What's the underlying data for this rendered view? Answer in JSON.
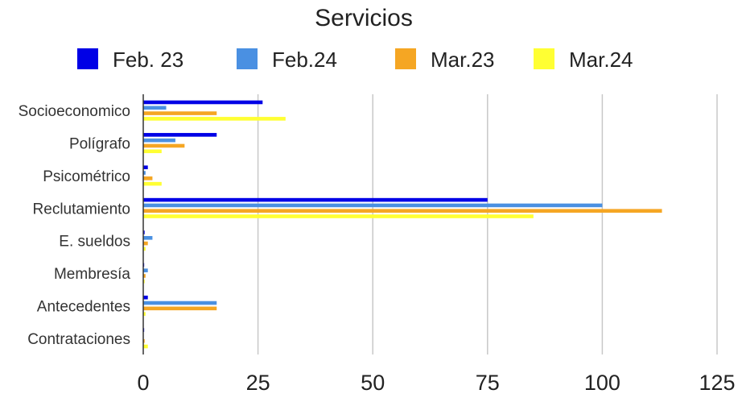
{
  "chart_data": {
    "type": "bar",
    "orientation": "horizontal",
    "title": "Servicios",
    "xlabel": "",
    "ylabel": "",
    "xlim": [
      0,
      125
    ],
    "x_ticks": [
      0,
      25,
      50,
      75,
      100,
      125
    ],
    "grid": true,
    "legend_position": "top",
    "categories": [
      "Socioeconomico",
      "Polígrafo",
      "Psicométrico",
      "Reclutamiento",
      "E. sueldos",
      "Membresía",
      "Antecedentes",
      "Contrataciones"
    ],
    "series": [
      {
        "name": "Feb. 23",
        "color": "#0000e6",
        "values": [
          26,
          16,
          1,
          75,
          0.3,
          0.2,
          1,
          0.2
        ]
      },
      {
        "name": "Feb.24",
        "color": "#4a90e2",
        "values": [
          5,
          7,
          0.5,
          100,
          2,
          1,
          16,
          0
        ]
      },
      {
        "name": "Mar.23",
        "color": "#f5a623",
        "values": [
          16,
          9,
          2,
          113,
          1,
          0.5,
          16,
          0.3
        ]
      },
      {
        "name": "Mar.24",
        "color": "#ffff33",
        "values": [
          31,
          4,
          4,
          85,
          0.5,
          0.3,
          0.5,
          1
        ]
      }
    ]
  }
}
